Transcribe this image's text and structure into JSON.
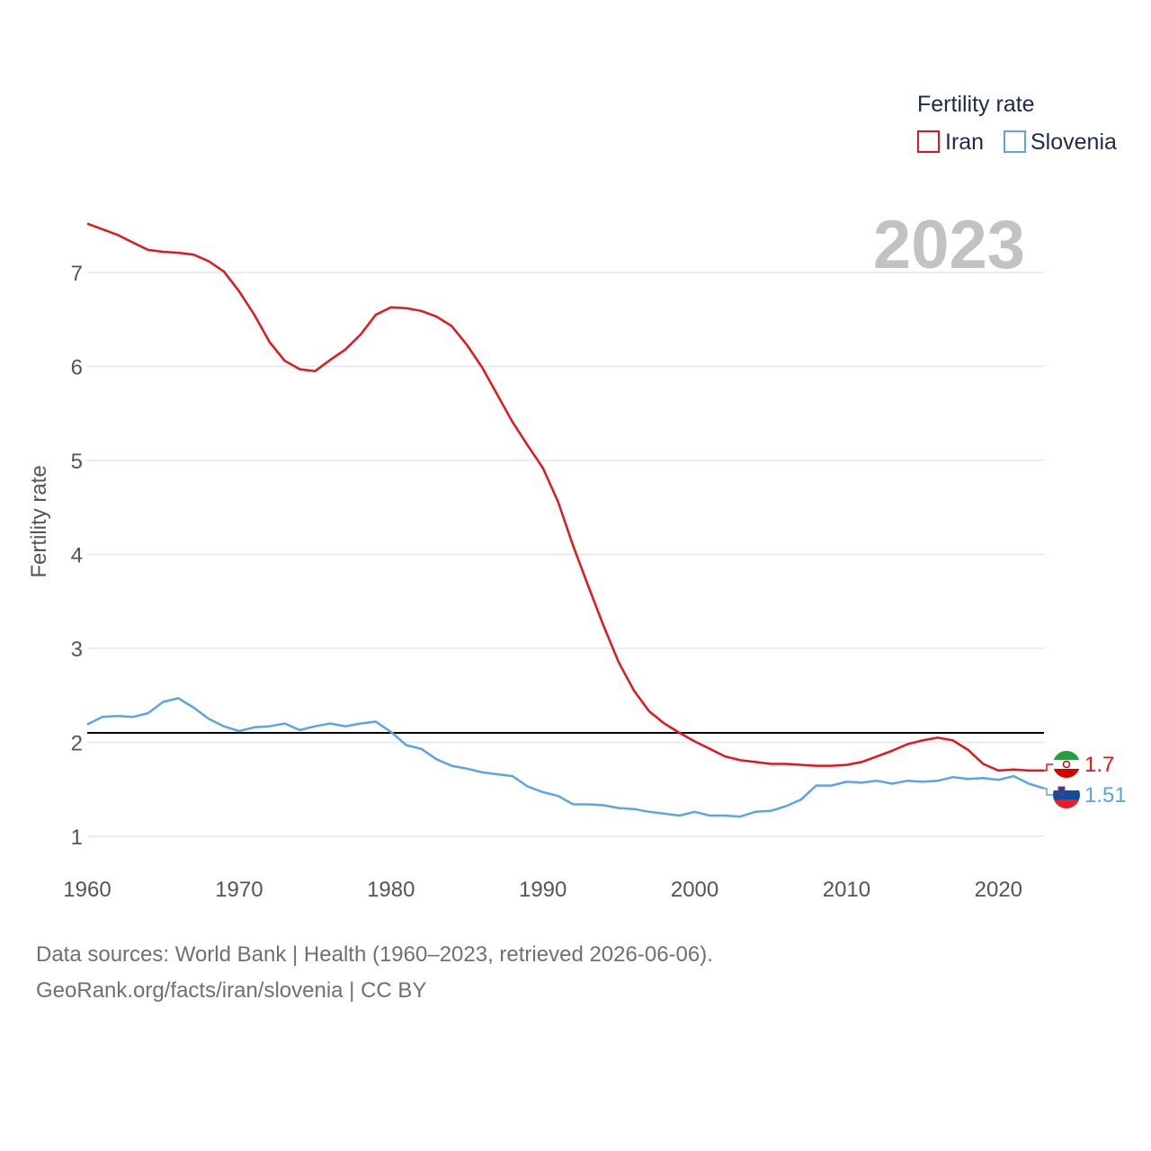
{
  "chart_data": {
    "type": "line",
    "ylabel": "Fertility rate",
    "xlabel": "",
    "year_label": "2023",
    "legend": {
      "title": "Fertility rate",
      "placement": "top-right",
      "entries": [
        "Iran",
        "Slovenia"
      ]
    },
    "xlim": [
      1960,
      2023
    ],
    "ylim": [
      0.7,
      7.5
    ],
    "x_ticks": [
      1960,
      1970,
      1980,
      1990,
      2000,
      2010,
      2020
    ],
    "y_ticks": [
      1,
      2,
      3,
      4,
      5,
      6,
      7
    ],
    "reference_line": {
      "y": 2.1,
      "color": "#000000"
    },
    "x": [
      1960,
      1961,
      1962,
      1963,
      1964,
      1965,
      1966,
      1967,
      1968,
      1969,
      1970,
      1971,
      1972,
      1973,
      1974,
      1975,
      1976,
      1977,
      1978,
      1979,
      1980,
      1981,
      1982,
      1983,
      1984,
      1985,
      1986,
      1987,
      1988,
      1989,
      1990,
      1991,
      1992,
      1993,
      1994,
      1995,
      1996,
      1997,
      1998,
      1999,
      2000,
      2001,
      2002,
      2003,
      2004,
      2005,
      2006,
      2007,
      2008,
      2009,
      2010,
      2011,
      2012,
      2013,
      2014,
      2015,
      2016,
      2017,
      2018,
      2019,
      2020,
      2021,
      2022,
      2023
    ],
    "series": [
      {
        "name": "Iran",
        "color": "#e8141c",
        "end_label": "1.7",
        "flag": "iran-flag-icon",
        "values": [
          7.52,
          7.46,
          7.4,
          7.32,
          7.24,
          7.22,
          7.21,
          7.19,
          7.12,
          7.01,
          6.8,
          6.55,
          6.26,
          6.06,
          5.97,
          5.95,
          6.07,
          6.18,
          6.34,
          6.55,
          6.63,
          6.62,
          6.59,
          6.53,
          6.43,
          6.23,
          5.99,
          5.7,
          5.41,
          5.16,
          4.92,
          4.56,
          4.09,
          3.66,
          3.24,
          2.85,
          2.55,
          2.33,
          2.2,
          2.1,
          2.01,
          1.93,
          1.85,
          1.81,
          1.79,
          1.77,
          1.77,
          1.76,
          1.75,
          1.75,
          1.76,
          1.79,
          1.85,
          1.91,
          1.98,
          2.02,
          2.05,
          2.02,
          1.92,
          1.77,
          1.7,
          1.71,
          1.7,
          1.7
        ]
      },
      {
        "name": "Slovenia",
        "color": "#5ba4e5",
        "end_label": "1.51",
        "flag": "slovenia-flag-icon",
        "values": [
          2.19,
          2.27,
          2.28,
          2.27,
          2.31,
          2.43,
          2.47,
          2.37,
          2.25,
          2.17,
          2.12,
          2.16,
          2.17,
          2.2,
          2.13,
          2.17,
          2.2,
          2.17,
          2.2,
          2.22,
          2.11,
          1.97,
          1.93,
          1.82,
          1.75,
          1.72,
          1.68,
          1.66,
          1.64,
          1.53,
          1.47,
          1.43,
          1.34,
          1.34,
          1.33,
          1.3,
          1.29,
          1.26,
          1.24,
          1.22,
          1.26,
          1.22,
          1.22,
          1.21,
          1.26,
          1.27,
          1.32,
          1.39,
          1.54,
          1.54,
          1.58,
          1.57,
          1.59,
          1.56,
          1.59,
          1.58,
          1.59,
          1.63,
          1.61,
          1.62,
          1.6,
          1.64,
          1.56,
          1.51
        ]
      }
    ]
  },
  "footer": {
    "sources": "Data sources: World Bank | Health (1960–2023, retrieved 2026-06-06).",
    "attribution": "GeoRank.org/facts/iran/slovenia | CC BY"
  }
}
